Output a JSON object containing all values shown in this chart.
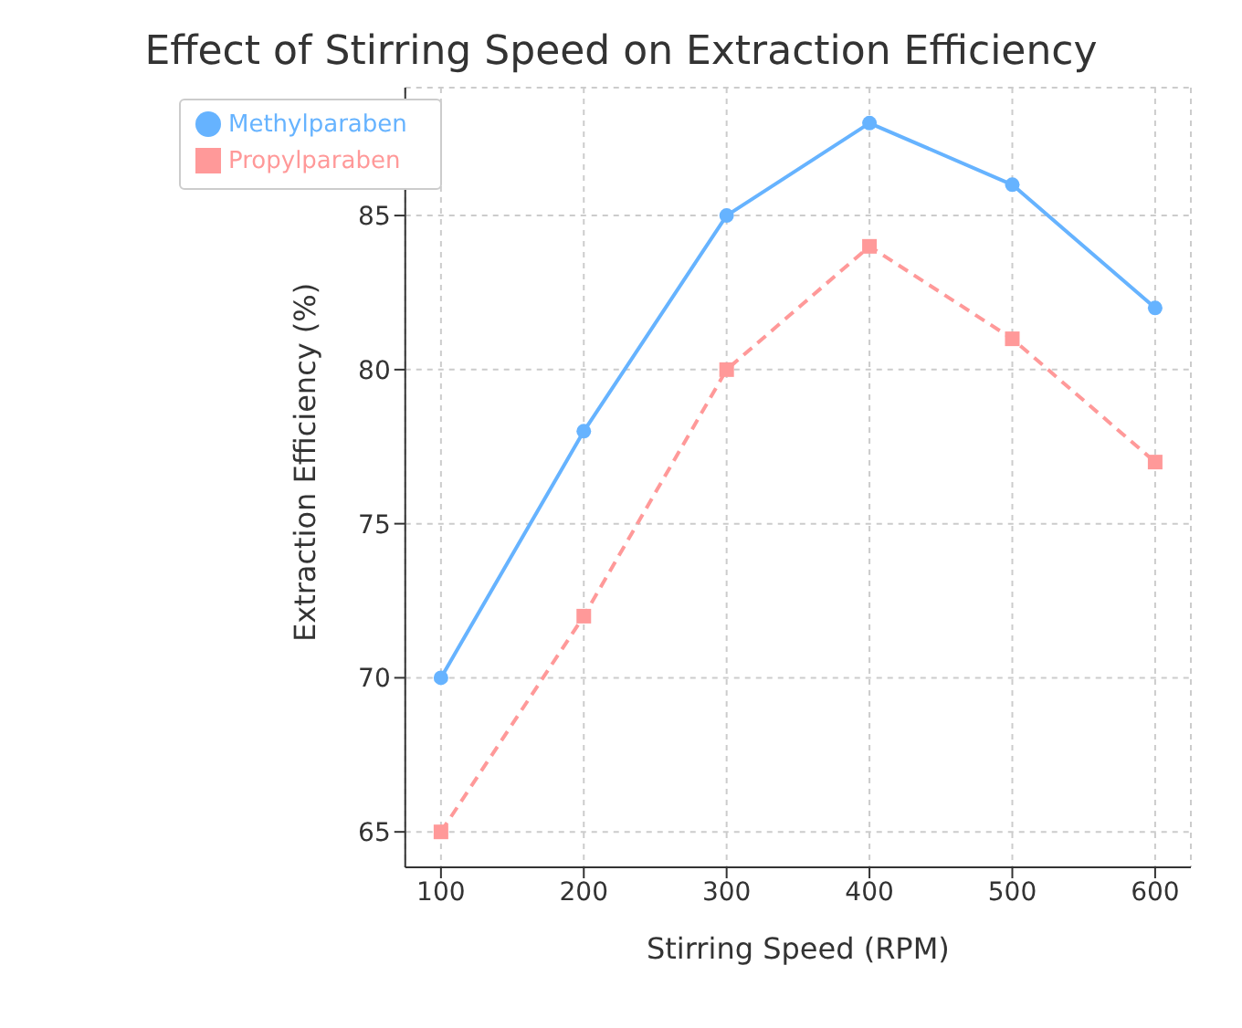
{
  "chart_data": {
    "type": "line",
    "title": "Effect of Stirring Speed on Extraction Efficiency",
    "xlabel": "Stirring Speed (RPM)",
    "ylabel": "Extraction Efficiency (%)",
    "x": [
      100,
      200,
      300,
      400,
      500,
      600
    ],
    "series": [
      {
        "name": "Methylparaben",
        "color": "#66b3ff",
        "values": [
          70,
          78,
          85,
          88,
          86,
          82
        ],
        "marker": "circle",
        "line_style": "solid"
      },
      {
        "name": "Propylparaben",
        "color": "#ff9999",
        "values": [
          65,
          72,
          80,
          84,
          81,
          77
        ],
        "marker": "square",
        "line_style": "dashed"
      }
    ],
    "xlim": [
      75,
      625
    ],
    "xticks": [
      100,
      200,
      300,
      400,
      500,
      600
    ],
    "ylim": [
      63.85,
      89.15
    ],
    "yticks": [
      65,
      70,
      75,
      80,
      85
    ],
    "grid": true,
    "legend": "top left"
  }
}
